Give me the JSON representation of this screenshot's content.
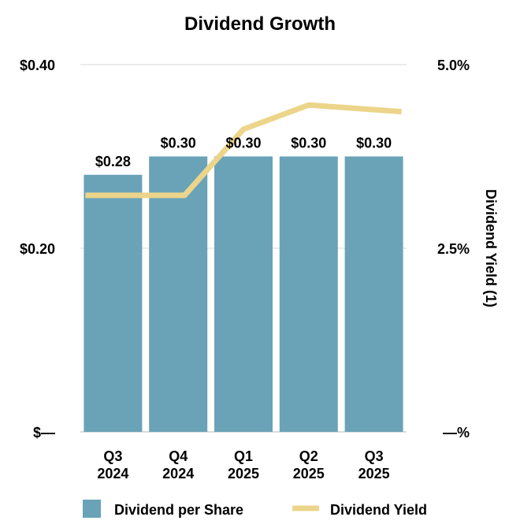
{
  "chart_data": {
    "type": "bar",
    "title": "Dividend Growth",
    "categories": [
      "Q3\n2024",
      "Q4\n2024",
      "Q1\n2025",
      "Q2\n2025",
      "Q3\n2025"
    ],
    "series": [
      {
        "name": "Dividend per Share",
        "kind": "bar",
        "axis": "left",
        "values": [
          0.28,
          0.3,
          0.3,
          0.3,
          0.3
        ],
        "labels": [
          "$0.28",
          "$0.30",
          "$0.30",
          "$0.30",
          "$0.30"
        ],
        "color": "#6aa3b8"
      },
      {
        "name": "Dividend Yield",
        "kind": "line",
        "axis": "right",
        "values": [
          3.22,
          3.22,
          4.12,
          4.45,
          4.36
        ],
        "color": "#ecd58a"
      }
    ],
    "y_left": {
      "ylim": [
        0,
        0.4
      ],
      "ticks": [
        0,
        0.2,
        0.4
      ],
      "tick_labels": [
        "$—",
        "$0.20",
        "$0.40"
      ]
    },
    "y_right": {
      "ylim": [
        0,
        5.0
      ],
      "ticks": [
        0,
        2.5,
        5.0
      ],
      "tick_labels": [
        "—%",
        "2.5%",
        "5.0%"
      ],
      "label": "Dividend Yield (1)"
    },
    "legend": {
      "position": "bottom",
      "entries": [
        "Dividend per Share",
        "Dividend Yield"
      ]
    }
  }
}
